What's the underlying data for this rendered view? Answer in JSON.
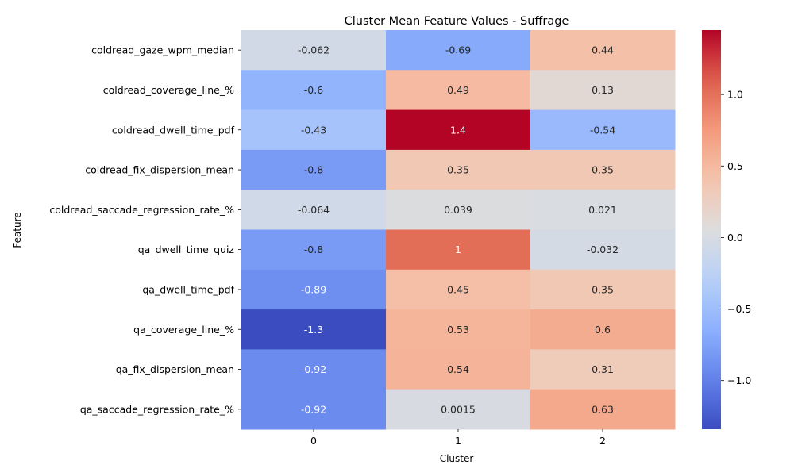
{
  "chart_data": {
    "type": "heatmap",
    "title": "Cluster Mean Feature Values - Suffrage",
    "xlabel": "Cluster",
    "ylabel": "Feature",
    "x_categories": [
      "0",
      "1",
      "2"
    ],
    "y_categories": [
      "coldread_gaze_wpm_median",
      "coldread_coverage_line_%",
      "coldread_dwell_time_pdf",
      "coldread_fix_dispersion_mean",
      "coldread_saccade_regression_rate_%",
      "qa_dwell_time_quiz",
      "qa_dwell_time_pdf",
      "qa_coverage_line_%",
      "qa_fix_dispersion_mean",
      "qa_saccade_regression_rate_%"
    ],
    "values": [
      [
        -0.062,
        -0.69,
        0.44
      ],
      [
        -0.6,
        0.49,
        0.13
      ],
      [
        -0.43,
        1.45,
        -0.54
      ],
      [
        -0.8,
        0.35,
        0.35
      ],
      [
        -0.064,
        0.039,
        0.021
      ],
      [
        -0.8,
        1.02,
        -0.032
      ],
      [
        -0.89,
        0.45,
        0.35
      ],
      [
        -1.34,
        0.53,
        0.6
      ],
      [
        -0.92,
        0.54,
        0.31
      ],
      [
        -0.92,
        0.0015,
        0.63
      ]
    ],
    "labels": [
      [
        "-0.062",
        "-0.69",
        "0.44"
      ],
      [
        "-0.6",
        "0.49",
        "0.13"
      ],
      [
        "-0.43",
        "1.4",
        "-0.54"
      ],
      [
        "-0.8",
        "0.35",
        "0.35"
      ],
      [
        "-0.064",
        "0.039",
        "0.021"
      ],
      [
        "-0.8",
        "1",
        "-0.032"
      ],
      [
        "-0.89",
        "0.45",
        "0.35"
      ],
      [
        "-1.3",
        "0.53",
        "0.6"
      ],
      [
        "-0.92",
        "0.54",
        "0.31"
      ],
      [
        "-0.92",
        "0.0015",
        "0.63"
      ]
    ],
    "colormap": "coolwarm",
    "color_range": [
      -1.34,
      1.45
    ],
    "colorbar_ticks": [
      -1.0,
      -0.5,
      0.0,
      0.5,
      1.0
    ],
    "colorbar_tick_labels": [
      "−1.0",
      "−0.5",
      "0.0",
      "0.5",
      "1.0"
    ]
  }
}
